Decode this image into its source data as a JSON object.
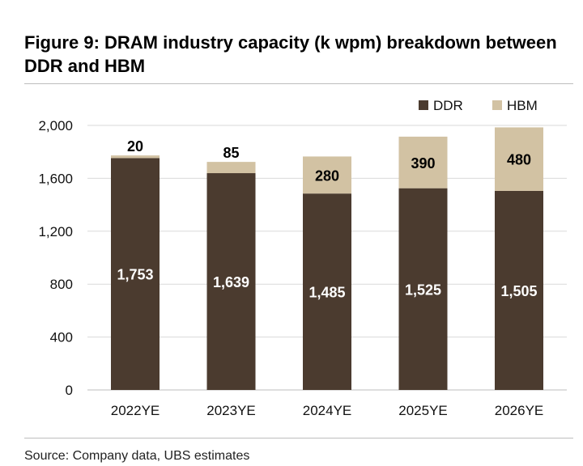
{
  "title": "Figure 9: DRAM industry capacity (k wpm) breakdown between DDR and HBM",
  "source": "Source: Company data, UBS estimates",
  "colors": {
    "DDR": "#4b3b2f",
    "HBM": "#d2c2a3",
    "gridline": "#d9d9d9"
  },
  "chart_data": {
    "type": "bar",
    "stacked": true,
    "categories": [
      "2022YE",
      "2023YE",
      "2024YE",
      "2025YE",
      "2026YE"
    ],
    "series": [
      {
        "name": "DDR",
        "values": [
          1753,
          1639,
          1485,
          1525,
          1505
        ],
        "value_labels": [
          "1,753",
          "1,639",
          "1,485",
          "1,525",
          "1,505"
        ]
      },
      {
        "name": "HBM",
        "values": [
          20,
          85,
          280,
          390,
          480
        ],
        "value_labels": [
          "20",
          "85",
          "280",
          "390",
          "480"
        ]
      }
    ],
    "ylim": [
      0,
      2000
    ],
    "yticks": [
      0,
      400,
      800,
      1200,
      1600,
      2000
    ],
    "ytick_labels": [
      "0",
      "400",
      "800",
      "1,200",
      "1,600",
      "2,000"
    ],
    "grid": true,
    "legend_position": "top-right"
  }
}
